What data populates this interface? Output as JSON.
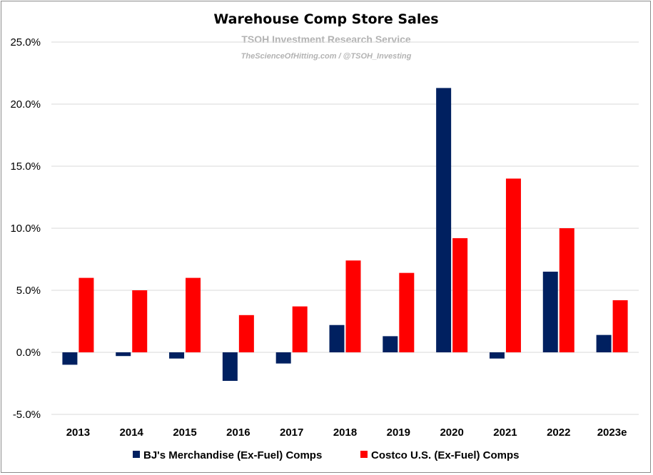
{
  "chart_data": {
    "type": "bar",
    "title": "Warehouse Comp Store Sales",
    "subtitle": "TSOH Investment Research Service",
    "subtitle2": "TheScienceOfHitting.com / @TSOH_Investing",
    "categories": [
      "2013",
      "2014",
      "2015",
      "2016",
      "2017",
      "2018",
      "2019",
      "2020",
      "2021",
      "2022",
      "2023e"
    ],
    "series": [
      {
        "name": "BJ's Merchandise (Ex-Fuel) Comps",
        "color": "#002060",
        "values": [
          -1.0,
          -0.3,
          -0.5,
          -2.3,
          -0.9,
          2.2,
          1.3,
          21.3,
          -0.5,
          6.5,
          1.4
        ]
      },
      {
        "name": "Costco U.S. (Ex-Fuel) Comps",
        "color": "#ff0000",
        "values": [
          6.0,
          5.0,
          6.0,
          3.0,
          3.7,
          7.4,
          6.4,
          9.2,
          14.0,
          10.0,
          4.2
        ]
      }
    ],
    "yticks": [
      "-5.0%",
      "0.0%",
      "5.0%",
      "10.0%",
      "15.0%",
      "20.0%",
      "25.0%"
    ],
    "ylim": [
      -5,
      25
    ],
    "ytick_step": 5,
    "xlabel": "",
    "ylabel": "",
    "grid": true,
    "legend_position": "bottom"
  }
}
